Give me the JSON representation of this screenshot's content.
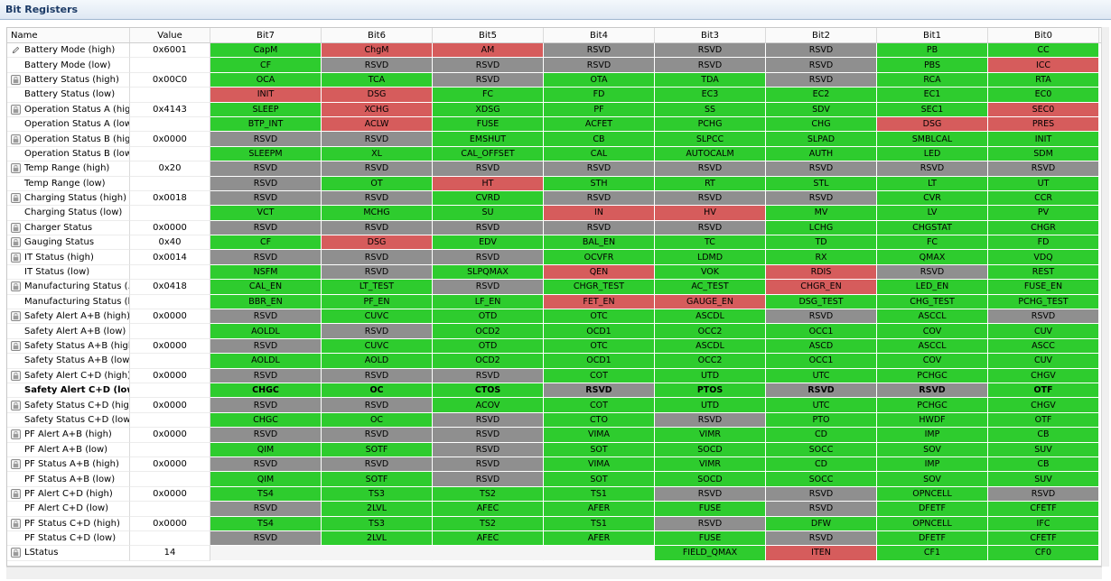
{
  "panel_title": "Bit Registers",
  "headers": [
    "Name",
    "Value",
    "Bit7",
    "Bit6",
    "Bit5",
    "Bit4",
    "Bit3",
    "Bit2",
    "Bit1",
    "Bit0"
  ],
  "colors": {
    "g": "#2ecc2e",
    "r": "#d65c5c",
    "y": "#8f8f8f"
  },
  "rows": [
    {
      "name": "Battery Mode (high)",
      "value": "0x6001",
      "icon": "pencil-icon",
      "bits": [
        [
          "CapM",
          "g"
        ],
        [
          "ChgM",
          "r"
        ],
        [
          "AM",
          "r"
        ],
        [
          "RSVD",
          "y"
        ],
        [
          "RSVD",
          "y"
        ],
        [
          "RSVD",
          "y"
        ],
        [
          "PB",
          "g"
        ],
        [
          "CC",
          "g"
        ]
      ]
    },
    {
      "name": "Battery Mode (low)",
      "value": "",
      "icon": "",
      "bits": [
        [
          "CF",
          "g"
        ],
        [
          "RSVD",
          "y"
        ],
        [
          "RSVD",
          "y"
        ],
        [
          "RSVD",
          "y"
        ],
        [
          "RSVD",
          "y"
        ],
        [
          "RSVD",
          "y"
        ],
        [
          "PBS",
          "g"
        ],
        [
          "ICC",
          "r"
        ]
      ]
    },
    {
      "name": "Battery Status (high)",
      "value": "0x00C0",
      "icon": "lock-icon",
      "bits": [
        [
          "OCA",
          "g"
        ],
        [
          "TCA",
          "g"
        ],
        [
          "RSVD",
          "y"
        ],
        [
          "OTA",
          "g"
        ],
        [
          "TDA",
          "g"
        ],
        [
          "RSVD",
          "y"
        ],
        [
          "RCA",
          "g"
        ],
        [
          "RTA",
          "g"
        ]
      ]
    },
    {
      "name": "Battery Status (low)",
      "value": "",
      "icon": "",
      "bits": [
        [
          "INIT",
          "r"
        ],
        [
          "DSG",
          "r"
        ],
        [
          "FC",
          "g"
        ],
        [
          "FD",
          "g"
        ],
        [
          "EC3",
          "g"
        ],
        [
          "EC2",
          "g"
        ],
        [
          "EC1",
          "g"
        ],
        [
          "EC0",
          "g"
        ]
      ]
    },
    {
      "name": "Operation Status A (high)",
      "value": "0x4143",
      "icon": "lock-icon",
      "bits": [
        [
          "SLEEP",
          "g"
        ],
        [
          "XCHG",
          "r"
        ],
        [
          "XDSG",
          "g"
        ],
        [
          "PF",
          "g"
        ],
        [
          "SS",
          "g"
        ],
        [
          "SDV",
          "g"
        ],
        [
          "SEC1",
          "g"
        ],
        [
          "SEC0",
          "r"
        ]
      ]
    },
    {
      "name": "Operation Status A (low)",
      "value": "",
      "icon": "",
      "bits": [
        [
          "BTP_INT",
          "g"
        ],
        [
          "ACLW",
          "r"
        ],
        [
          "FUSE",
          "g"
        ],
        [
          "ACFET",
          "g"
        ],
        [
          "PCHG",
          "g"
        ],
        [
          "CHG",
          "g"
        ],
        [
          "DSG",
          "r"
        ],
        [
          "PRES",
          "r"
        ]
      ]
    },
    {
      "name": "Operation Status B (hig...",
      "value": "0x0000",
      "icon": "lock-icon",
      "bits": [
        [
          "RSVD",
          "y"
        ],
        [
          "RSVD",
          "y"
        ],
        [
          "EMSHUT",
          "g"
        ],
        [
          "CB",
          "g"
        ],
        [
          "SLPCC",
          "g"
        ],
        [
          "SLPAD",
          "g"
        ],
        [
          "SMBLCAL",
          "g"
        ],
        [
          "INIT",
          "g"
        ]
      ]
    },
    {
      "name": "Operation Status B (low)",
      "value": "",
      "icon": "",
      "bits": [
        [
          "SLEEPM",
          "g"
        ],
        [
          "XL",
          "g"
        ],
        [
          "CAL_OFFSET",
          "g"
        ],
        [
          "CAL",
          "g"
        ],
        [
          "AUTOCALM",
          "g"
        ],
        [
          "AUTH",
          "g"
        ],
        [
          "LED",
          "g"
        ],
        [
          "SDM",
          "g"
        ]
      ]
    },
    {
      "name": "Temp Range (high)",
      "value": "0x20",
      "icon": "lock-icon",
      "bits": [
        [
          "RSVD",
          "y"
        ],
        [
          "RSVD",
          "y"
        ],
        [
          "RSVD",
          "y"
        ],
        [
          "RSVD",
          "y"
        ],
        [
          "RSVD",
          "y"
        ],
        [
          "RSVD",
          "y"
        ],
        [
          "RSVD",
          "y"
        ],
        [
          "RSVD",
          "y"
        ]
      ]
    },
    {
      "name": "Temp Range (low)",
      "value": "",
      "icon": "",
      "bits": [
        [
          "RSVD",
          "y"
        ],
        [
          "OT",
          "g"
        ],
        [
          "HT",
          "r"
        ],
        [
          "STH",
          "g"
        ],
        [
          "RT",
          "g"
        ],
        [
          "STL",
          "g"
        ],
        [
          "LT",
          "g"
        ],
        [
          "UT",
          "g"
        ]
      ]
    },
    {
      "name": "Charging Status (high)",
      "value": "0x0018",
      "icon": "lock-icon",
      "bits": [
        [
          "RSVD",
          "y"
        ],
        [
          "RSVD",
          "y"
        ],
        [
          "CVRD",
          "g"
        ],
        [
          "RSVD",
          "y"
        ],
        [
          "RSVD",
          "y"
        ],
        [
          "RSVD",
          "y"
        ],
        [
          "CVR",
          "g"
        ],
        [
          "CCR",
          "g"
        ]
      ]
    },
    {
      "name": "Charging Status (low)",
      "value": "",
      "icon": "",
      "bits": [
        [
          "VCT",
          "g"
        ],
        [
          "MCHG",
          "g"
        ],
        [
          "SU",
          "g"
        ],
        [
          "IN",
          "r"
        ],
        [
          "HV",
          "r"
        ],
        [
          "MV",
          "g"
        ],
        [
          "LV",
          "g"
        ],
        [
          "PV",
          "g"
        ]
      ]
    },
    {
      "name": "Charger Status",
      "value": "0x0000",
      "icon": "lock-icon",
      "bits": [
        [
          "RSVD",
          "y"
        ],
        [
          "RSVD",
          "y"
        ],
        [
          "RSVD",
          "y"
        ],
        [
          "RSVD",
          "y"
        ],
        [
          "RSVD",
          "y"
        ],
        [
          "LCHG",
          "g"
        ],
        [
          "CHGSTAT",
          "g"
        ],
        [
          "CHGR",
          "g"
        ]
      ]
    },
    {
      "name": "Gauging Status",
      "value": "0x40",
      "icon": "lock-icon",
      "bits": [
        [
          "CF",
          "g"
        ],
        [
          "DSG",
          "r"
        ],
        [
          "EDV",
          "g"
        ],
        [
          "BAL_EN",
          "g"
        ],
        [
          "TC",
          "g"
        ],
        [
          "TD",
          "g"
        ],
        [
          "FC",
          "g"
        ],
        [
          "FD",
          "g"
        ]
      ]
    },
    {
      "name": "IT Status (high)",
      "value": "0x0014",
      "icon": "lock-icon",
      "bits": [
        [
          "RSVD",
          "y"
        ],
        [
          "RSVD",
          "y"
        ],
        [
          "RSVD",
          "y"
        ],
        [
          "OCVFR",
          "g"
        ],
        [
          "LDMD",
          "g"
        ],
        [
          "RX",
          "g"
        ],
        [
          "QMAX",
          "g"
        ],
        [
          "VDQ",
          "g"
        ]
      ]
    },
    {
      "name": "IT Status (low)",
      "value": "",
      "icon": "",
      "bits": [
        [
          "NSFM",
          "g"
        ],
        [
          "RSVD",
          "y"
        ],
        [
          "SLPQMAX",
          "g"
        ],
        [
          "QEN",
          "r"
        ],
        [
          "VOK",
          "g"
        ],
        [
          "RDIS",
          "r"
        ],
        [
          "RSVD",
          "y"
        ],
        [
          "REST",
          "g"
        ]
      ]
    },
    {
      "name": "Manufacturing Status (...",
      "value": "0x0418",
      "icon": "lock-icon",
      "bits": [
        [
          "CAL_EN",
          "g"
        ],
        [
          "LT_TEST",
          "g"
        ],
        [
          "RSVD",
          "y"
        ],
        [
          "CHGR_TEST",
          "g"
        ],
        [
          "AC_TEST",
          "g"
        ],
        [
          "CHGR_EN",
          "r"
        ],
        [
          "LED_EN",
          "g"
        ],
        [
          "FUSE_EN",
          "g"
        ]
      ]
    },
    {
      "name": "Manufacturing Status (l...",
      "value": "",
      "icon": "",
      "bits": [
        [
          "BBR_EN",
          "g"
        ],
        [
          "PF_EN",
          "g"
        ],
        [
          "LF_EN",
          "g"
        ],
        [
          "FET_EN",
          "r"
        ],
        [
          "GAUGE_EN",
          "r"
        ],
        [
          "DSG_TEST",
          "g"
        ],
        [
          "CHG_TEST",
          "g"
        ],
        [
          "PCHG_TEST",
          "g"
        ]
      ]
    },
    {
      "name": "Safety Alert A+B (high)",
      "value": "0x0000",
      "icon": "lock-icon",
      "bits": [
        [
          "RSVD",
          "y"
        ],
        [
          "CUVC",
          "g"
        ],
        [
          "OTD",
          "g"
        ],
        [
          "OTC",
          "g"
        ],
        [
          "ASCDL",
          "g"
        ],
        [
          "RSVD",
          "y"
        ],
        [
          "ASCCL",
          "g"
        ],
        [
          "RSVD",
          "y"
        ]
      ]
    },
    {
      "name": "Safety Alert A+B (low)",
      "value": "",
      "icon": "",
      "bits": [
        [
          "AOLDL",
          "g"
        ],
        [
          "RSVD",
          "y"
        ],
        [
          "OCD2",
          "g"
        ],
        [
          "OCD1",
          "g"
        ],
        [
          "OCC2",
          "g"
        ],
        [
          "OCC1",
          "g"
        ],
        [
          "COV",
          "g"
        ],
        [
          "CUV",
          "g"
        ]
      ]
    },
    {
      "name": "Safety Status A+B (high)",
      "value": "0x0000",
      "icon": "lock-icon",
      "bits": [
        [
          "RSVD",
          "y"
        ],
        [
          "CUVC",
          "g"
        ],
        [
          "OTD",
          "g"
        ],
        [
          "OTC",
          "g"
        ],
        [
          "ASCDL",
          "g"
        ],
        [
          "ASCD",
          "g"
        ],
        [
          "ASCCL",
          "g"
        ],
        [
          "ASCC",
          "g"
        ]
      ]
    },
    {
      "name": "Safety Status A+B (low)",
      "value": "",
      "icon": "",
      "bits": [
        [
          "AOLDL",
          "g"
        ],
        [
          "AOLD",
          "g"
        ],
        [
          "OCD2",
          "g"
        ],
        [
          "OCD1",
          "g"
        ],
        [
          "OCC2",
          "g"
        ],
        [
          "OCC1",
          "g"
        ],
        [
          "COV",
          "g"
        ],
        [
          "CUV",
          "g"
        ]
      ]
    },
    {
      "name": "Safety Alert C+D (high)",
      "value": "0x0000",
      "icon": "lock-icon",
      "bits": [
        [
          "RSVD",
          "y"
        ],
        [
          "RSVD",
          "y"
        ],
        [
          "RSVD",
          "y"
        ],
        [
          "COT",
          "g"
        ],
        [
          "UTD",
          "g"
        ],
        [
          "UTC",
          "g"
        ],
        [
          "PCHGC",
          "g"
        ],
        [
          "CHGV",
          "g"
        ]
      ]
    },
    {
      "name": "Safety Alert C+D (low)",
      "value": "",
      "icon": "",
      "bold": true,
      "bits": [
        [
          "CHGC",
          "g"
        ],
        [
          "OC",
          "g"
        ],
        [
          "CTOS",
          "g"
        ],
        [
          "RSVD",
          "y"
        ],
        [
          "PTOS",
          "g"
        ],
        [
          "RSVD",
          "y"
        ],
        [
          "RSVD",
          "y"
        ],
        [
          "OTF",
          "g"
        ]
      ]
    },
    {
      "name": "Safety Status C+D (high)",
      "value": "0x0000",
      "icon": "lock-icon",
      "bits": [
        [
          "RSVD",
          "y"
        ],
        [
          "RSVD",
          "y"
        ],
        [
          "ACOV",
          "g"
        ],
        [
          "COT",
          "g"
        ],
        [
          "UTD",
          "g"
        ],
        [
          "UTC",
          "g"
        ],
        [
          "PCHGC",
          "g"
        ],
        [
          "CHGV",
          "g"
        ]
      ]
    },
    {
      "name": "Safety Status C+D (low)",
      "value": "",
      "icon": "",
      "bits": [
        [
          "CHGC",
          "g"
        ],
        [
          "OC",
          "g"
        ],
        [
          "RSVD",
          "y"
        ],
        [
          "CTO",
          "g"
        ],
        [
          "RSVD",
          "y"
        ],
        [
          "PTO",
          "g"
        ],
        [
          "HWDF",
          "g"
        ],
        [
          "OTF",
          "g"
        ]
      ]
    },
    {
      "name": "PF Alert A+B (high)",
      "value": "0x0000",
      "icon": "lock-icon",
      "bits": [
        [
          "RSVD",
          "y"
        ],
        [
          "RSVD",
          "y"
        ],
        [
          "RSVD",
          "y"
        ],
        [
          "VIMA",
          "g"
        ],
        [
          "VIMR",
          "g"
        ],
        [
          "CD",
          "g"
        ],
        [
          "IMP",
          "g"
        ],
        [
          "CB",
          "g"
        ]
      ]
    },
    {
      "name": "PF Alert A+B (low)",
      "value": "",
      "icon": "",
      "bits": [
        [
          "QIM",
          "g"
        ],
        [
          "SOTF",
          "g"
        ],
        [
          "RSVD",
          "y"
        ],
        [
          "SOT",
          "g"
        ],
        [
          "SOCD",
          "g"
        ],
        [
          "SOCC",
          "g"
        ],
        [
          "SOV",
          "g"
        ],
        [
          "SUV",
          "g"
        ]
      ]
    },
    {
      "name": "PF Status A+B (high)",
      "value": "0x0000",
      "icon": "lock-icon",
      "bits": [
        [
          "RSVD",
          "y"
        ],
        [
          "RSVD",
          "y"
        ],
        [
          "RSVD",
          "y"
        ],
        [
          "VIMA",
          "g"
        ],
        [
          "VIMR",
          "g"
        ],
        [
          "CD",
          "g"
        ],
        [
          "IMP",
          "g"
        ],
        [
          "CB",
          "g"
        ]
      ]
    },
    {
      "name": "PF Status A+B (low)",
      "value": "",
      "icon": "",
      "bits": [
        [
          "QIM",
          "g"
        ],
        [
          "SOTF",
          "g"
        ],
        [
          "RSVD",
          "y"
        ],
        [
          "SOT",
          "g"
        ],
        [
          "SOCD",
          "g"
        ],
        [
          "SOCC",
          "g"
        ],
        [
          "SOV",
          "g"
        ],
        [
          "SUV",
          "g"
        ]
      ]
    },
    {
      "name": "PF Alert C+D (high)",
      "value": "0x0000",
      "icon": "lock-icon",
      "bits": [
        [
          "TS4",
          "g"
        ],
        [
          "TS3",
          "g"
        ],
        [
          "TS2",
          "g"
        ],
        [
          "TS1",
          "g"
        ],
        [
          "RSVD",
          "y"
        ],
        [
          "RSVD",
          "y"
        ],
        [
          "OPNCELL",
          "g"
        ],
        [
          "RSVD",
          "y"
        ]
      ]
    },
    {
      "name": "PF Alert C+D (low)",
      "value": "",
      "icon": "",
      "bits": [
        [
          "RSVD",
          "y"
        ],
        [
          "2LVL",
          "g"
        ],
        [
          "AFEC",
          "g"
        ],
        [
          "AFER",
          "g"
        ],
        [
          "FUSE",
          "g"
        ],
        [
          "RSVD",
          "y"
        ],
        [
          "DFETF",
          "g"
        ],
        [
          "CFETF",
          "g"
        ]
      ]
    },
    {
      "name": "PF Status C+D (high)",
      "value": "0x0000",
      "icon": "lock-icon",
      "bits": [
        [
          "TS4",
          "g"
        ],
        [
          "TS3",
          "g"
        ],
        [
          "TS2",
          "g"
        ],
        [
          "TS1",
          "g"
        ],
        [
          "RSVD",
          "y"
        ],
        [
          "DFW",
          "g"
        ],
        [
          "OPNCELL",
          "g"
        ],
        [
          "IFC",
          "g"
        ]
      ]
    },
    {
      "name": "PF Status C+D (low)",
      "value": "",
      "icon": "",
      "bits": [
        [
          "RSVD",
          "y"
        ],
        [
          "2LVL",
          "g"
        ],
        [
          "AFEC",
          "g"
        ],
        [
          "AFER",
          "g"
        ],
        [
          "FUSE",
          "g"
        ],
        [
          "RSVD",
          "y"
        ],
        [
          "DFETF",
          "g"
        ],
        [
          "CFETF",
          "g"
        ]
      ]
    },
    {
      "name": "LStatus",
      "value": "14",
      "icon": "lock-icon",
      "bits": [
        [
          "",
          "e"
        ],
        [
          "",
          "e"
        ],
        [
          "",
          "e"
        ],
        [
          "",
          "e"
        ],
        [
          "FIELD_QMAX",
          "g"
        ],
        [
          "ITEN",
          "r"
        ],
        [
          "CF1",
          "g"
        ],
        [
          "CF0",
          "g"
        ]
      ]
    }
  ]
}
